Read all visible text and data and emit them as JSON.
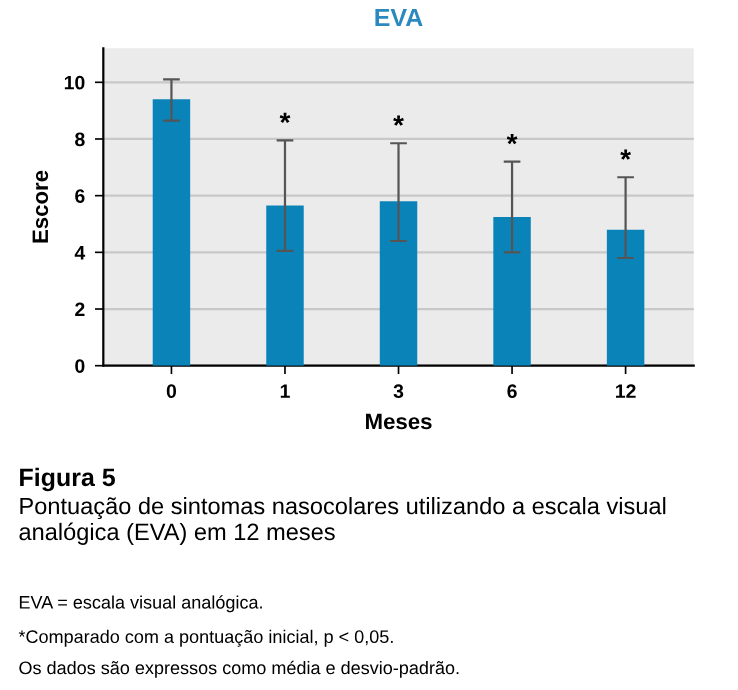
{
  "chart_data": {
    "type": "bar",
    "title": "EVA",
    "xlabel": "Meses",
    "ylabel": "Escore",
    "categories": [
      "0",
      "1",
      "3",
      "6",
      "12"
    ],
    "values": [
      9.4,
      5.65,
      5.8,
      5.25,
      4.8
    ],
    "errors": [
      [
        8.65,
        10.1
      ],
      [
        4.05,
        7.95
      ],
      [
        4.4,
        7.85
      ],
      [
        4.0,
        7.2
      ],
      [
        3.8,
        6.65
      ]
    ],
    "value_labels": [
      null,
      "*",
      "*",
      "*",
      "*"
    ],
    "color": "#0a84b8",
    "ylim": [
      0,
      11.2
    ],
    "yticks": [
      0,
      2,
      4,
      6,
      8,
      10
    ],
    "grid": "y",
    "annotations": [
      "Figura 5",
      "Pontuação de sintomas nasocolares utilizando a escala visual analógica (EVA) em 12 meses",
      "EVA = escala visual analógica.",
      "*Comparado com a pontuação inicial, p < 0,05.",
      "Os dados são expressos como média e desvio-padrão."
    ]
  }
}
